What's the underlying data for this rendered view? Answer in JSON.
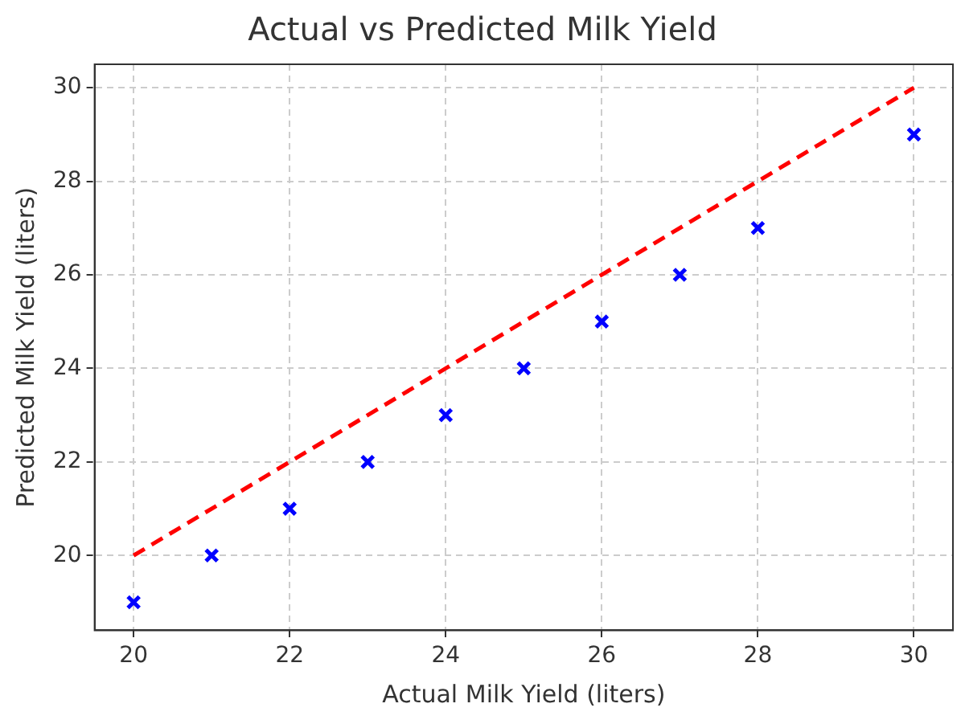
{
  "chart_data": {
    "type": "scatter",
    "title": "Actual vs Predicted Milk Yield",
    "xlabel": "Actual Milk Yield (liters)",
    "ylabel": "Predicted Milk Yield (liters)",
    "series": [
      {
        "color": "#0000ff",
        "marker": "cross",
        "x": [
          20,
          21,
          22,
          23,
          24,
          25,
          26,
          27,
          28,
          30
        ],
        "values": [
          19,
          20,
          21,
          22,
          23,
          24,
          25,
          26,
          27,
          29
        ]
      },
      {
        "type": "line",
        "color": "#ff0000",
        "line_style": "dashed",
        "marker": "none",
        "x": [
          20,
          30
        ],
        "values": [
          20,
          30
        ]
      }
    ],
    "xlim": [
      19.5,
      30.5
    ],
    "xticks": [
      20,
      22,
      24,
      26,
      28,
      30
    ],
    "ylim": [
      18.4,
      30.5
    ],
    "yticks": [
      20,
      22,
      24,
      26,
      28,
      30
    ],
    "grid": true,
    "legend": false
  }
}
